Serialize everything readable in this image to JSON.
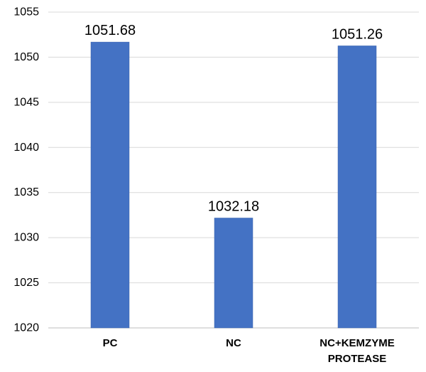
{
  "chart_data": {
    "type": "bar",
    "categories": [
      [
        "PC"
      ],
      [
        "NC"
      ],
      [
        "NC+KEMZYME",
        "PROTEASE"
      ]
    ],
    "values": [
      1051.68,
      1032.18,
      1051.26
    ],
    "data_labels": [
      "1051.68",
      "1032.18",
      "1051.26"
    ],
    "y_ticks": [
      1020,
      1025,
      1030,
      1035,
      1040,
      1045,
      1050,
      1055
    ],
    "ylim": [
      1020,
      1055
    ],
    "grid": true,
    "legend": "none",
    "title": "",
    "xlabel": "",
    "ylabel": "",
    "bar_color": "#4472c4"
  }
}
